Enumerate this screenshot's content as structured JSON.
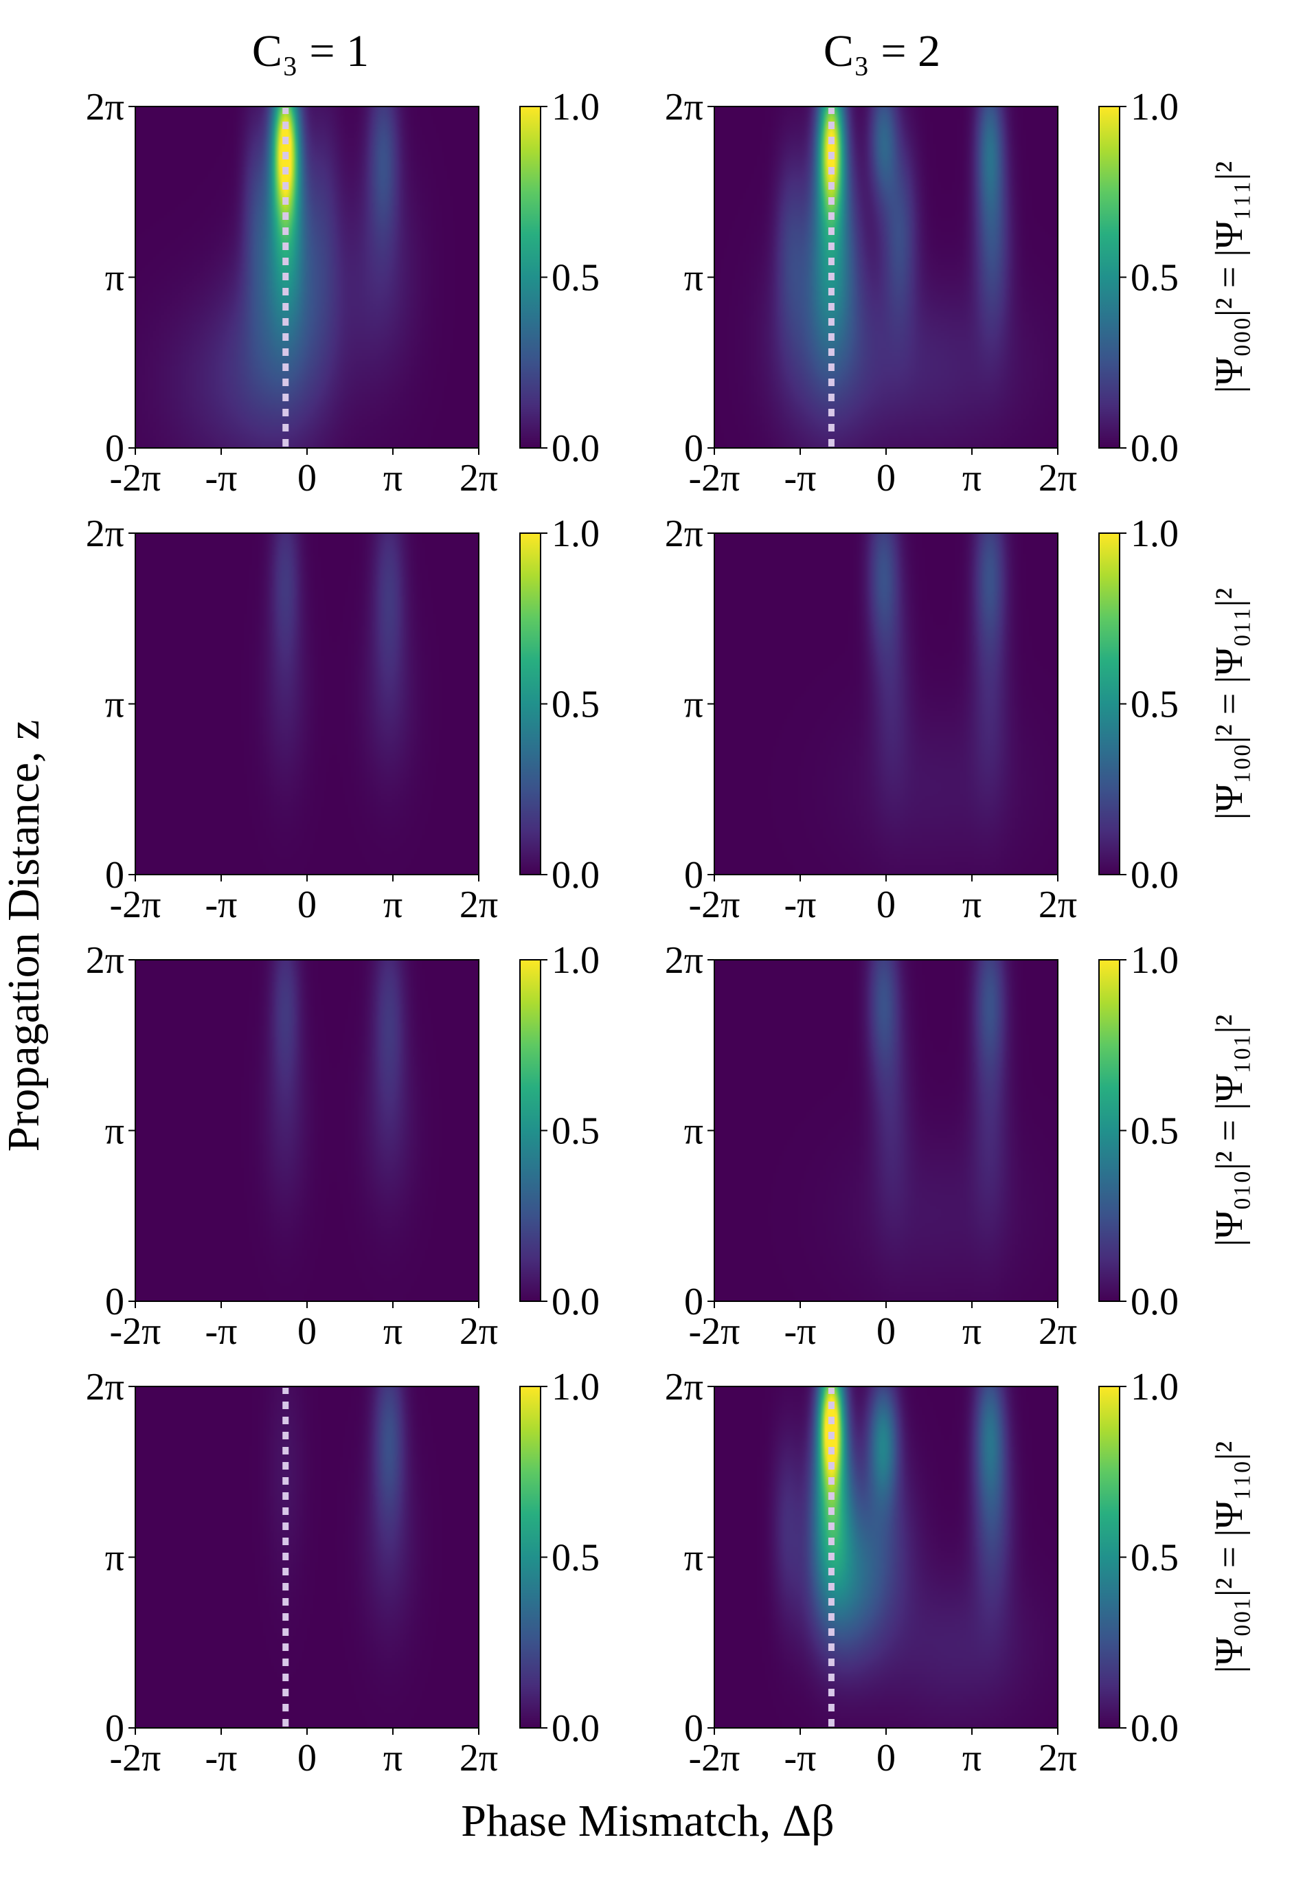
{
  "figure": {
    "col_titles": [
      "C₃ = 1",
      "C₃ = 2"
    ],
    "xlabel": "Phase Mismatch, Δβ",
    "ylabel": "Propagation Distance, z",
    "row_labels": [
      "|Ψ₀₀₀|² = |Ψ₁₁₁|²",
      "|Ψ₁₀₀|² = |Ψ₀₁₁|²",
      "|Ψ₀₁₀|² = |Ψ₁₀₁|²",
      "|Ψ₀₀₁|² = |Ψ₁₁₀|²"
    ]
  },
  "chart_data": {
    "type": "heatmap",
    "colormap": "viridis",
    "x_ticks": [
      "-2π",
      "-π",
      "0",
      "π",
      "2π"
    ],
    "y_ticks": [
      "0",
      "π",
      "2π"
    ],
    "xlim": [
      -6.2832,
      6.2832
    ],
    "ylim": [
      0,
      6.2832
    ],
    "colorbar_ticks": [
      "0.0",
      "0.5",
      "1.0"
    ],
    "colorbar_range": [
      0.0,
      1.0
    ],
    "dotted_line_color": "#d8c8e8",
    "panels": [
      {
        "row": 0,
        "col": 0,
        "dotted_line_x": -0.785,
        "blobs": [
          {
            "x": -0.785,
            "z_center": 5.6,
            "sx": 0.34,
            "sz": 0.9,
            "amp": 0.95
          },
          {
            "x": -0.785,
            "z_center": 4.0,
            "sx": 0.55,
            "sz": 1.2,
            "amp": 0.45
          },
          {
            "x": -0.785,
            "z_center": 2.2,
            "sx": 1.2,
            "sz": 1.3,
            "amp": 0.2
          },
          {
            "x": -1.9,
            "z_center": 4.4,
            "sx": 0.35,
            "sz": 1.3,
            "amp": 0.14
          },
          {
            "x": 0.6,
            "z_center": 4.2,
            "sx": 0.45,
            "sz": 1.5,
            "amp": 0.12
          },
          {
            "x": 2.8,
            "z_center": 5.4,
            "sx": 0.4,
            "sz": 1.1,
            "amp": 0.22
          },
          {
            "x": 2.6,
            "z_center": 3.2,
            "sx": 1.0,
            "sz": 1.4,
            "amp": 0.1
          },
          {
            "x": -2.5,
            "z_center": 1.2,
            "sx": 2.0,
            "sz": 1.2,
            "amp": 0.1
          }
        ]
      },
      {
        "row": 0,
        "col": 1,
        "dotted_line_x": -2.0,
        "blobs": [
          {
            "x": -2.0,
            "z_center": 5.6,
            "sx": 0.33,
            "sz": 0.9,
            "amp": 0.88
          },
          {
            "x": -2.0,
            "z_center": 3.8,
            "sx": 0.6,
            "sz": 1.3,
            "amp": 0.42
          },
          {
            "x": -2.2,
            "z_center": 2.0,
            "sx": 1.3,
            "sz": 1.3,
            "amp": 0.18
          },
          {
            "x": -0.1,
            "z_center": 5.7,
            "sx": 0.35,
            "sz": 0.8,
            "amp": 0.3
          },
          {
            "x": 0.5,
            "z_center": 4.0,
            "sx": 0.45,
            "sz": 1.2,
            "amp": 0.22
          },
          {
            "x": 3.8,
            "z_center": 5.6,
            "sx": 0.35,
            "sz": 0.9,
            "amp": 0.3
          },
          {
            "x": 3.9,
            "z_center": 3.8,
            "sx": 0.45,
            "sz": 1.2,
            "amp": 0.22
          },
          {
            "x": -3.5,
            "z_center": 3.8,
            "sx": 0.4,
            "sz": 1.2,
            "amp": 0.15
          },
          {
            "x": 1.5,
            "z_center": 1.5,
            "sx": 2.5,
            "sz": 1.1,
            "amp": 0.09
          }
        ]
      },
      {
        "row": 1,
        "col": 0,
        "dotted_line_x": null,
        "blobs": [
          {
            "x": -0.785,
            "z_center": 5.5,
            "sx": 0.38,
            "sz": 1.1,
            "amp": 0.15
          },
          {
            "x": -0.785,
            "z_center": 3.3,
            "sx": 0.6,
            "sz": 1.3,
            "amp": 0.07
          },
          {
            "x": 3.0,
            "z_center": 5.3,
            "sx": 0.42,
            "sz": 1.2,
            "amp": 0.15
          },
          {
            "x": 3.0,
            "z_center": 3.2,
            "sx": 0.7,
            "sz": 1.2,
            "amp": 0.07
          }
        ]
      },
      {
        "row": 1,
        "col": 1,
        "dotted_line_x": null,
        "blobs": [
          {
            "x": -0.1,
            "z_center": 5.6,
            "sx": 0.4,
            "sz": 1.0,
            "amp": 0.22
          },
          {
            "x": 0.2,
            "z_center": 3.6,
            "sx": 0.5,
            "sz": 1.4,
            "amp": 0.1
          },
          {
            "x": 3.8,
            "z_center": 5.6,
            "sx": 0.4,
            "sz": 1.0,
            "amp": 0.22
          },
          {
            "x": 3.8,
            "z_center": 3.4,
            "sx": 0.5,
            "sz": 1.4,
            "amp": 0.1
          },
          {
            "x": 1.8,
            "z_center": 1.6,
            "sx": 2.3,
            "sz": 1.1,
            "amp": 0.05
          }
        ]
      },
      {
        "row": 2,
        "col": 0,
        "dotted_line_x": null,
        "blobs": [
          {
            "x": -0.785,
            "z_center": 5.5,
            "sx": 0.38,
            "sz": 1.1,
            "amp": 0.15
          },
          {
            "x": -0.785,
            "z_center": 3.3,
            "sx": 0.6,
            "sz": 1.3,
            "amp": 0.07
          },
          {
            "x": 3.0,
            "z_center": 5.3,
            "sx": 0.42,
            "sz": 1.2,
            "amp": 0.15
          },
          {
            "x": 3.0,
            "z_center": 3.2,
            "sx": 0.7,
            "sz": 1.2,
            "amp": 0.07
          }
        ]
      },
      {
        "row": 2,
        "col": 1,
        "dotted_line_x": null,
        "blobs": [
          {
            "x": -0.1,
            "z_center": 5.6,
            "sx": 0.4,
            "sz": 1.0,
            "amp": 0.22
          },
          {
            "x": 0.2,
            "z_center": 3.6,
            "sx": 0.5,
            "sz": 1.4,
            "amp": 0.1
          },
          {
            "x": 3.8,
            "z_center": 5.6,
            "sx": 0.4,
            "sz": 1.0,
            "amp": 0.22
          },
          {
            "x": 3.8,
            "z_center": 3.4,
            "sx": 0.5,
            "sz": 1.4,
            "amp": 0.1
          },
          {
            "x": 1.8,
            "z_center": 1.6,
            "sx": 2.3,
            "sz": 1.1,
            "amp": 0.05
          }
        ]
      },
      {
        "row": 3,
        "col": 0,
        "dotted_line_x": -0.785,
        "blobs": [
          {
            "x": 3.0,
            "z_center": 5.4,
            "sx": 0.4,
            "sz": 1.1,
            "amp": 0.22
          },
          {
            "x": 3.0,
            "z_center": 3.4,
            "sx": 0.7,
            "sz": 1.3,
            "amp": 0.08
          },
          {
            "x": -0.785,
            "z_center": 4.8,
            "sx": 0.5,
            "sz": 1.5,
            "amp": 0.05
          }
        ]
      },
      {
        "row": 3,
        "col": 1,
        "dotted_line_x": -2.0,
        "blobs": [
          {
            "x": -2.0,
            "z_center": 5.7,
            "sx": 0.32,
            "sz": 0.8,
            "amp": 0.95
          },
          {
            "x": -2.0,
            "z_center": 4.2,
            "sx": 0.5,
            "sz": 1.1,
            "amp": 0.55
          },
          {
            "x": -1.6,
            "z_center": 2.6,
            "sx": 0.9,
            "sz": 1.0,
            "amp": 0.3
          },
          {
            "x": -0.1,
            "z_center": 5.3,
            "sx": 0.38,
            "sz": 0.8,
            "amp": 0.4
          },
          {
            "x": -0.3,
            "z_center": 3.4,
            "sx": 0.9,
            "sz": 1.2,
            "amp": 0.18
          },
          {
            "x": 3.8,
            "z_center": 5.5,
            "sx": 0.38,
            "sz": 0.9,
            "amp": 0.3
          },
          {
            "x": 3.9,
            "z_center": 3.9,
            "sx": 0.5,
            "sz": 1.2,
            "amp": 0.2
          },
          {
            "x": 2.5,
            "z_center": 1.5,
            "sx": 2.0,
            "sz": 1.0,
            "amp": 0.08
          },
          {
            "x": -3.6,
            "z_center": 3.8,
            "sx": 0.4,
            "sz": 1.2,
            "amp": 0.12
          }
        ]
      }
    ]
  }
}
